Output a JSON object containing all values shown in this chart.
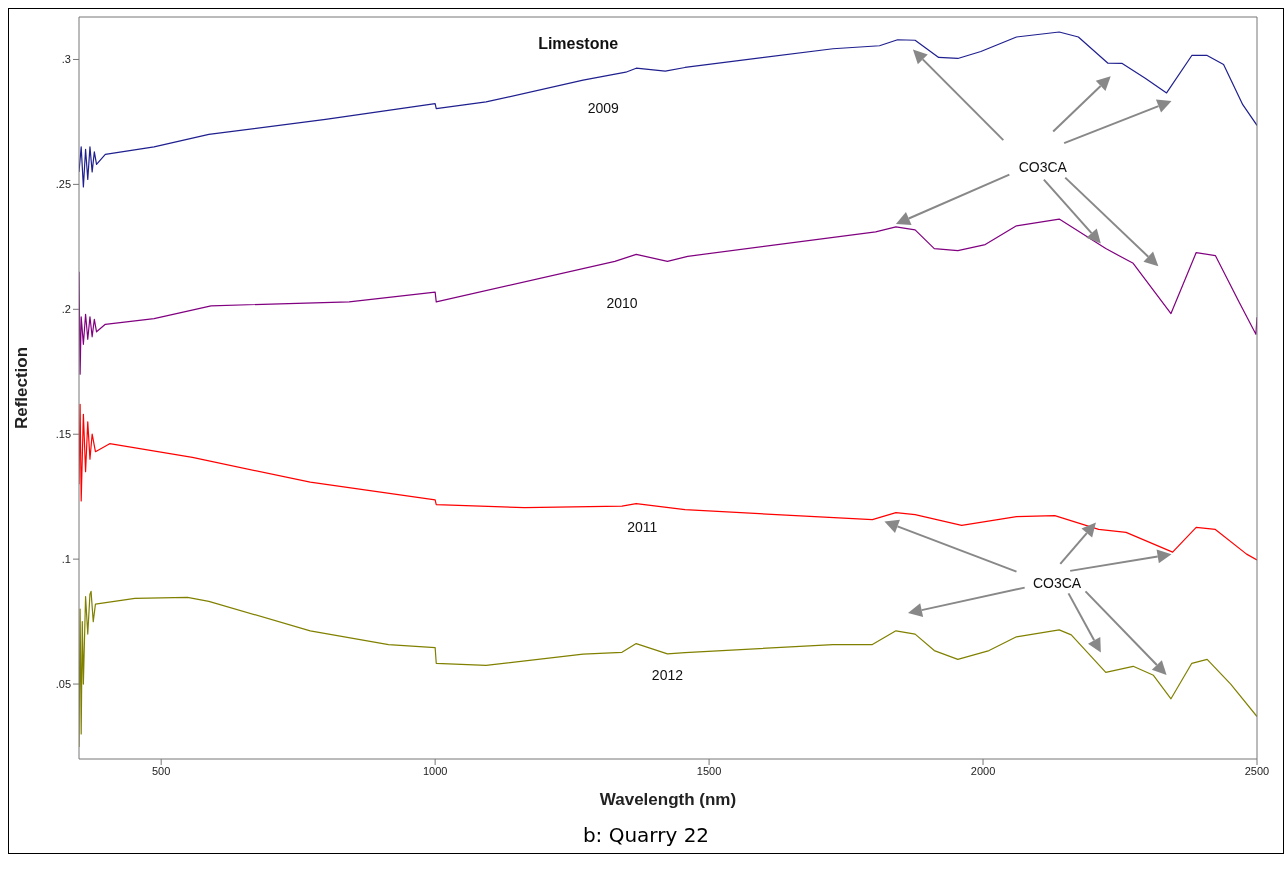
{
  "chart_data": {
    "type": "line",
    "title": "Limestone",
    "xlabel": "Wavelength (nm)",
    "ylabel": "Reflection",
    "annotations": [
      "CO3CA",
      "CO3CA",
      "b: Quarry 22"
    ],
    "xlim": [
      350,
      2500
    ],
    "ylim": [
      0.02,
      0.317
    ],
    "xticks": [
      500,
      1000,
      1500,
      2000,
      2500
    ],
    "yticks": [
      {
        "value": 0.05,
        "label": ".05"
      },
      {
        "value": 0.1,
        "label": ".1"
      },
      {
        "value": 0.15,
        "label": ".15"
      },
      {
        "value": 0.2,
        "label": ".2"
      },
      {
        "value": 0.25,
        "label": ".25"
      },
      {
        "value": 0.3,
        "label": ".3"
      }
    ],
    "marker": "none",
    "line_style": "solid",
    "series": [
      {
        "name": "2009",
        "color": "#1f1f8f",
        "x": [
          350,
          354,
          358,
          362,
          366,
          370,
          374,
          378,
          382,
          398,
          487,
          587,
          800,
          1000,
          1002,
          1093,
          1270,
          1348,
          1367,
          1420,
          1456,
          1726,
          1811,
          1844,
          1876,
          1919,
          1954,
          1996,
          2061,
          2139,
          2174,
          2228,
          2254,
          2296,
          2335,
          2381,
          2409,
          2439,
          2474,
          2500
        ],
        "values": [
          0.255,
          0.265,
          0.249,
          0.264,
          0.252,
          0.265,
          0.255,
          0.263,
          0.258,
          0.262,
          0.265,
          0.27,
          0.276,
          0.2823,
          0.2803,
          0.283,
          0.2917,
          0.2949,
          0.2965,
          0.2953,
          0.2968,
          0.3043,
          0.3055,
          0.3079,
          0.3077,
          0.3008,
          0.3004,
          0.3032,
          0.309,
          0.311,
          0.309,
          0.2985,
          0.2984,
          0.2925,
          0.2866,
          0.3016,
          0.3016,
          0.298,
          0.2819,
          0.2736
        ]
      },
      {
        "name": "2010",
        "color": "#800080",
        "x": [
          350,
          352,
          354,
          358,
          362,
          366,
          370,
          374,
          378,
          382,
          398,
          487,
          591,
          843,
          1000,
          1002,
          1328,
          1367,
          1424,
          1461,
          1804,
          1841,
          1876,
          1911,
          1954,
          2004,
          2061,
          2139,
          2224,
          2274,
          2343,
          2389,
          2424,
          2467,
          2498,
          2500
        ],
        "values": [
          0.215,
          0.174,
          0.197,
          0.186,
          0.198,
          0.188,
          0.197,
          0.189,
          0.196,
          0.191,
          0.194,
          0.1963,
          0.2014,
          0.203,
          0.2069,
          0.203,
          0.2192,
          0.222,
          0.2192,
          0.2212,
          0.231,
          0.233,
          0.2318,
          0.2243,
          0.2235,
          0.2259,
          0.2334,
          0.2361,
          0.2243,
          0.2184,
          0.1983,
          0.2227,
          0.2215,
          0.203,
          0.19,
          0.1968
        ]
      },
      {
        "name": "2011",
        "color": "#ff0000",
        "x": [
          350,
          352,
          354,
          358,
          362,
          366,
          370,
          374,
          380,
          406,
          557,
          772,
          1000,
          1002,
          1163,
          1341,
          1367,
          1456,
          1798,
          1841,
          1876,
          1961,
          2061,
          2131,
          2211,
          2261,
          2346,
          2389,
          2424,
          2481,
          2500
        ],
        "values": [
          0.13,
          0.162,
          0.1233,
          0.158,
          0.135,
          0.155,
          0.14,
          0.15,
          0.143,
          0.1462,
          0.1407,
          0.1308,
          0.1237,
          0.1218,
          0.1206,
          0.1212,
          0.1222,
          0.1198,
          0.1158,
          0.1186,
          0.1178,
          0.1135,
          0.117,
          0.1174,
          0.1119,
          0.1107,
          0.1028,
          0.1127,
          0.1119,
          0.102,
          0.0997
        ]
      },
      {
        "name": "2012",
        "color": "#808000",
        "x": [
          350,
          352,
          354,
          356,
          358,
          362,
          366,
          370,
          372,
          376,
          380,
          452,
          548,
          587,
          772,
          915,
          1000,
          1002,
          1093,
          1270,
          1341,
          1367,
          1424,
          1456,
          1726,
          1798,
          1841,
          1876,
          1911,
          1954,
          2011,
          2061,
          2139,
          2161,
          2224,
          2274,
          2311,
          2343,
          2381,
          2409,
          2452,
          2500
        ],
        "values": [
          0.0248,
          0.08,
          0.03,
          0.075,
          0.05,
          0.085,
          0.07,
          0.086,
          0.0871,
          0.075,
          0.082,
          0.0843,
          0.0847,
          0.0831,
          0.0713,
          0.0658,
          0.0646,
          0.0583,
          0.0575,
          0.062,
          0.0627,
          0.0662,
          0.0621,
          0.0626,
          0.0658,
          0.0658,
          0.0713,
          0.07,
          0.0634,
          0.0599,
          0.0634,
          0.0689,
          0.0717,
          0.0697,
          0.0547,
          0.0571,
          0.0535,
          0.0441,
          0.0583,
          0.0599,
          0.05,
          0.037
        ]
      }
    ]
  }
}
